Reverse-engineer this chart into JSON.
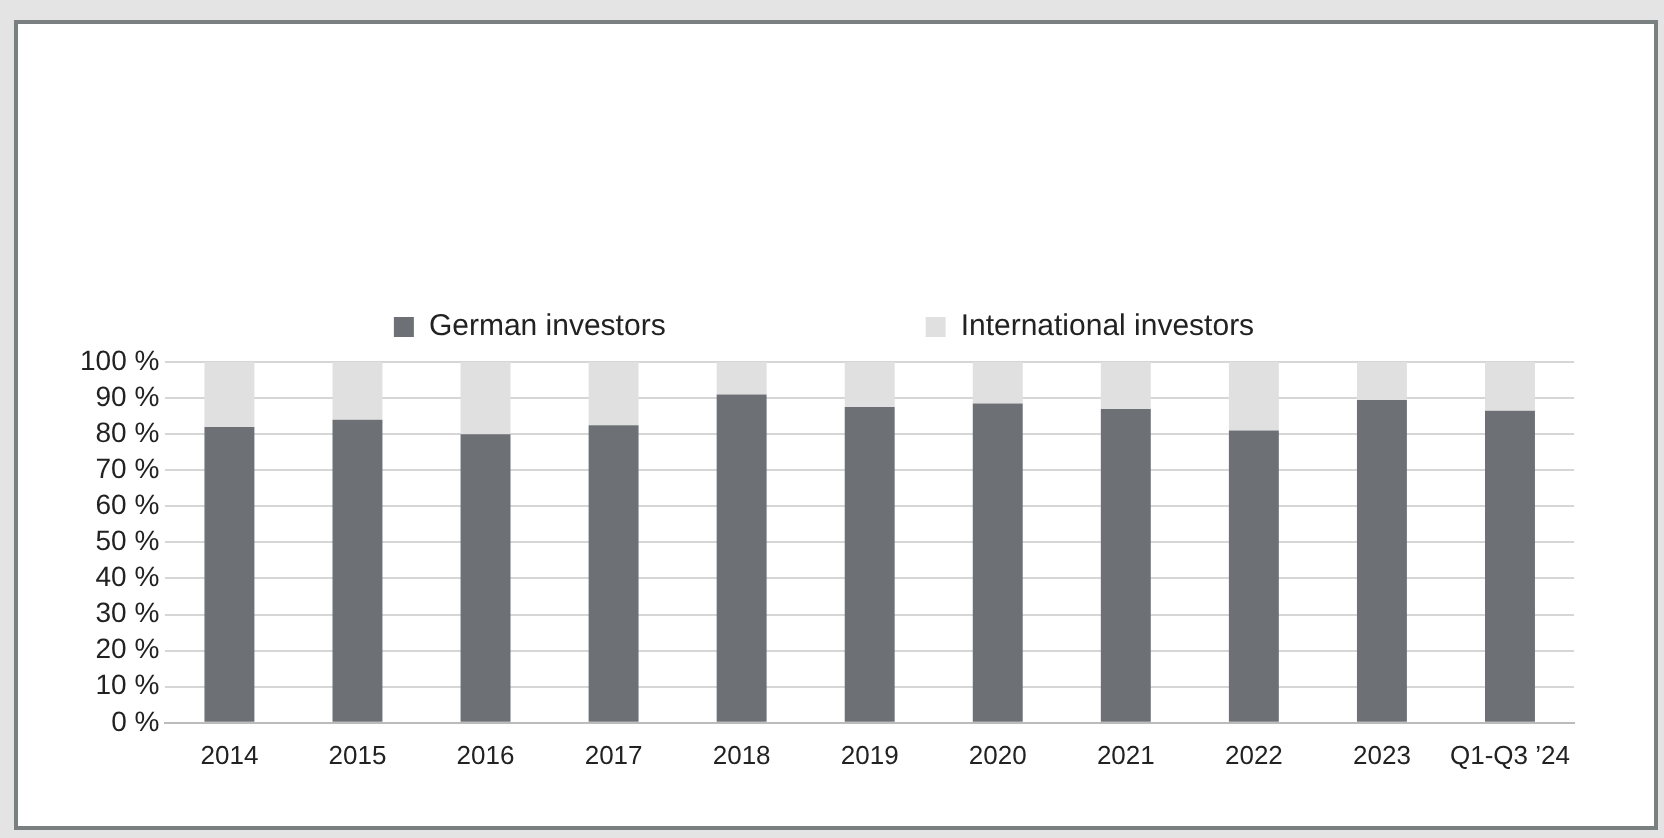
{
  "chart_data": {
    "type": "bar",
    "stacked": true,
    "categories": [
      "2014",
      "2015",
      "2016",
      "2017",
      "2018",
      "2019",
      "2020",
      "2021",
      "2022",
      "2023",
      "Q1-Q3 ’24"
    ],
    "series": [
      {
        "name": "German investors",
        "color": "#6d7175",
        "values": [
          82,
          84,
          80,
          82.5,
          91,
          87.5,
          88.5,
          87,
          81,
          89.5,
          86.5
        ]
      },
      {
        "name": "International investors",
        "color": "#e0e0e0",
        "values": [
          18,
          16,
          20,
          17.5,
          9,
          12.5,
          11.5,
          13,
          19,
          10.5,
          13.5
        ]
      }
    ],
    "ylim": [
      0,
      100
    ],
    "yticks": [
      {
        "value": 0,
        "label": "0 %"
      },
      {
        "value": 10,
        "label": "10 %"
      },
      {
        "value": 20,
        "label": "20 %"
      },
      {
        "value": 30,
        "label": "30 %"
      },
      {
        "value": 40,
        "label": "40 %"
      },
      {
        "value": 50,
        "label": "50 %"
      },
      {
        "value": 60,
        "label": "60 %"
      },
      {
        "value": 70,
        "label": "70 %"
      },
      {
        "value": 80,
        "label": "80 %"
      },
      {
        "value": 90,
        "label": "90 %"
      },
      {
        "value": 100,
        "label": "100 %"
      }
    ],
    "grid": "y",
    "legend": "top"
  }
}
